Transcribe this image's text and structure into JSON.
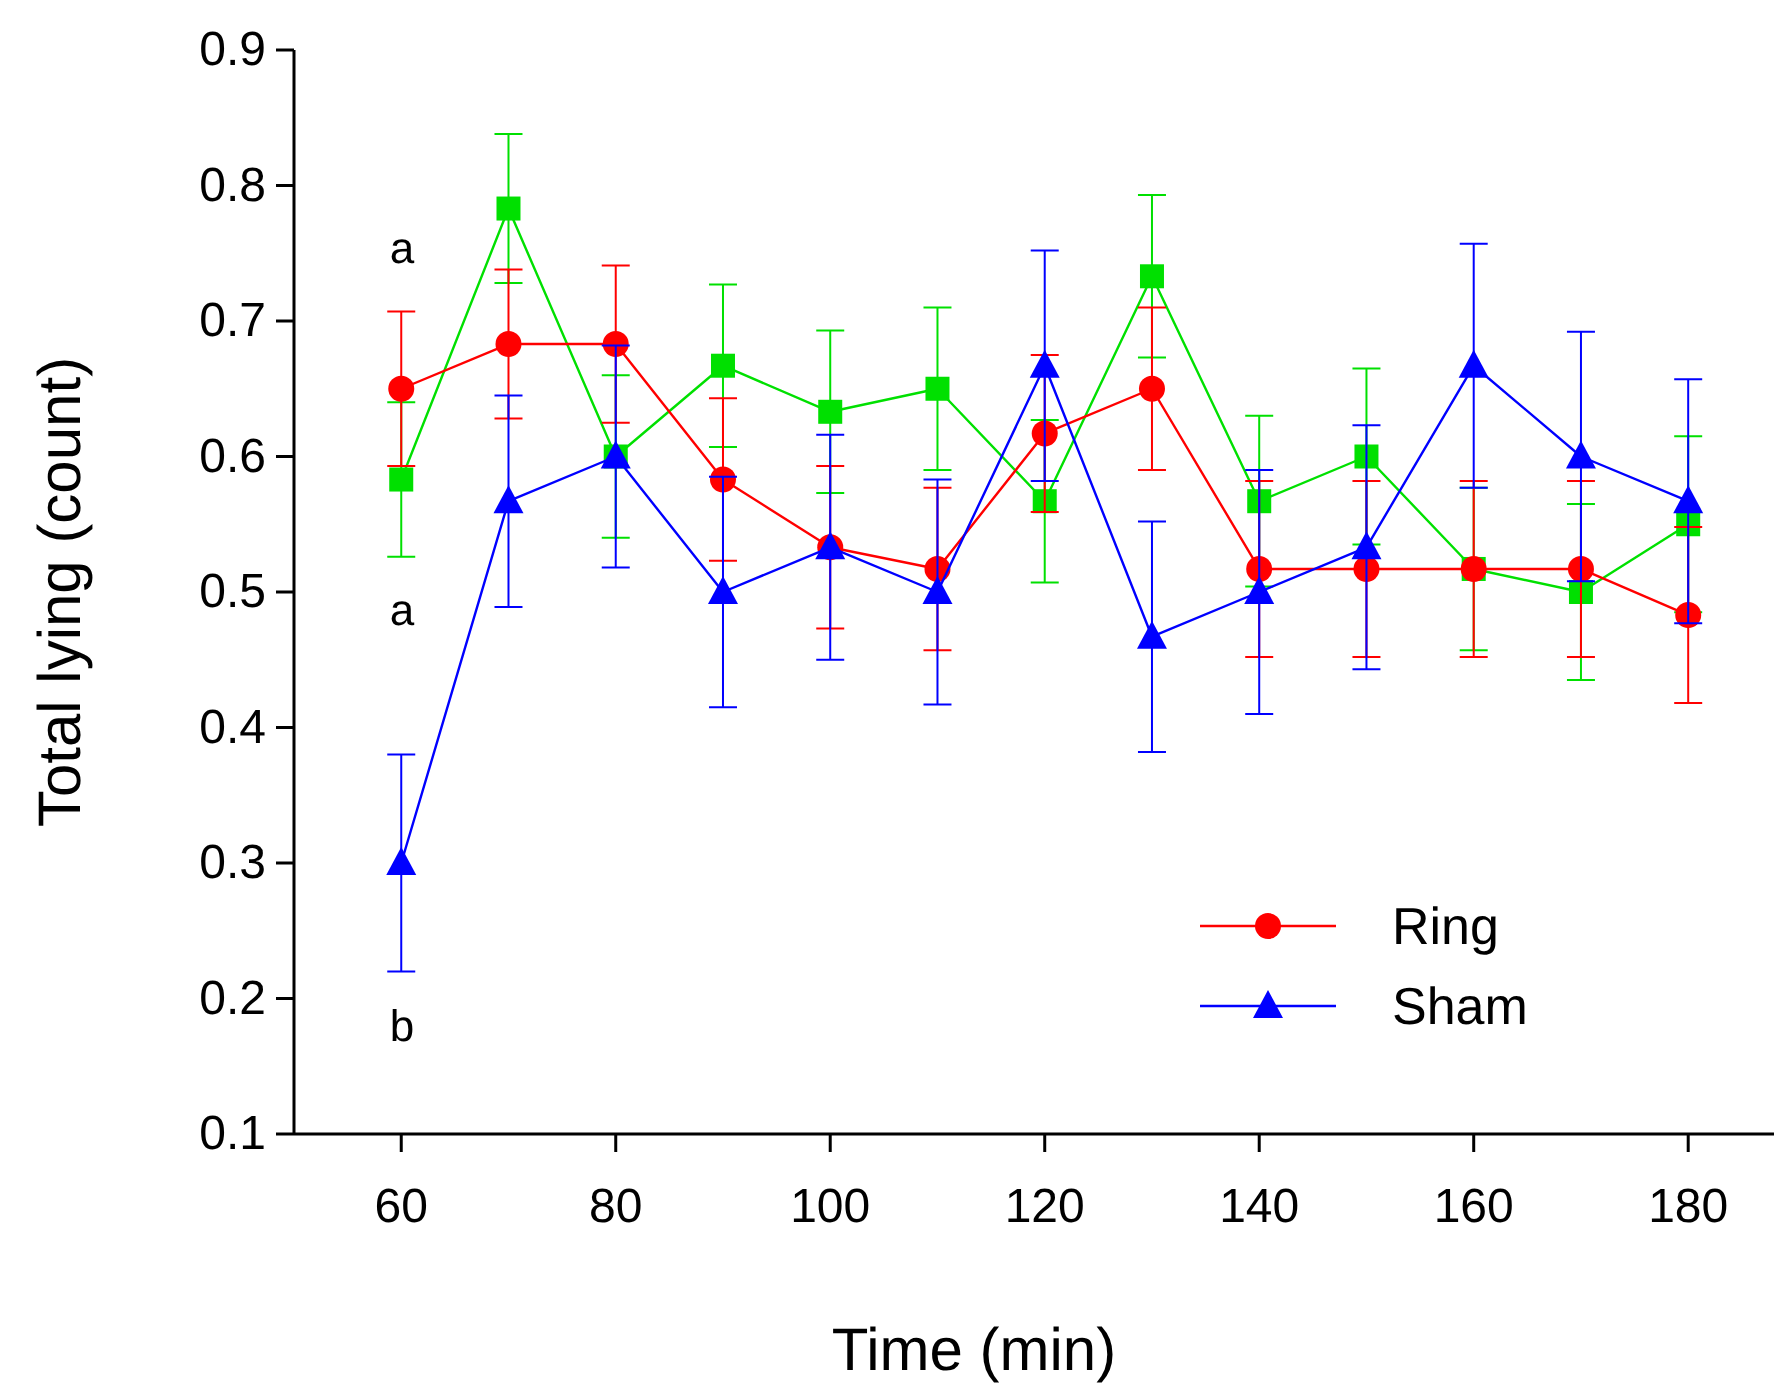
{
  "chart_data": {
    "type": "line",
    "xlabel": "Time (min)",
    "ylabel": "Total lying (count)",
    "x": [
      60,
      70,
      80,
      90,
      100,
      110,
      120,
      130,
      140,
      150,
      160,
      170,
      180
    ],
    "xlim": [
      50,
      188
    ],
    "xticks": [
      60,
      80,
      100,
      120,
      140,
      160,
      180
    ],
    "ylim": [
      0.1,
      0.9
    ],
    "yticks": [
      0.1,
      0.2,
      0.3,
      0.4,
      0.5,
      0.6,
      0.7,
      0.8,
      0.9
    ],
    "grid": false,
    "legend": "bottom right",
    "series": [
      {
        "color": "#00e000",
        "marker": "square",
        "values": [
          0.583,
          0.783,
          0.6,
          0.667,
          0.633,
          0.65,
          0.567,
          0.733,
          0.567,
          0.6,
          0.517,
          0.5,
          0.55
        ],
        "errors": [
          0.057,
          0.055,
          0.06,
          0.06,
          0.06,
          0.06,
          0.06,
          0.06,
          0.063,
          0.065,
          0.06,
          0.065,
          0.065
        ]
      },
      {
        "name": "Ring",
        "color": "#ff0000",
        "marker": "circle",
        "values": [
          0.65,
          0.683,
          0.683,
          0.583,
          0.533,
          0.517,
          0.617,
          0.65,
          0.517,
          0.517,
          0.517,
          0.517,
          0.483
        ],
        "errors": [
          0.057,
          0.055,
          0.058,
          0.06,
          0.06,
          0.06,
          0.058,
          0.06,
          0.065,
          0.065,
          0.065,
          0.065,
          0.065
        ]
      },
      {
        "name": "Sham",
        "color": "#0000ff",
        "marker": "triangle",
        "values": [
          0.3,
          0.567,
          0.6,
          0.5,
          0.533,
          0.5,
          0.667,
          0.467,
          0.5,
          0.533,
          0.667,
          0.6,
          0.567
        ],
        "errors": [
          0.08,
          0.078,
          0.082,
          0.085,
          0.083,
          0.083,
          0.085,
          0.085,
          0.09,
          0.09,
          0.09,
          0.092,
          0.09
        ]
      }
    ],
    "annotations": [
      "a",
      "a",
      "b"
    ]
  }
}
